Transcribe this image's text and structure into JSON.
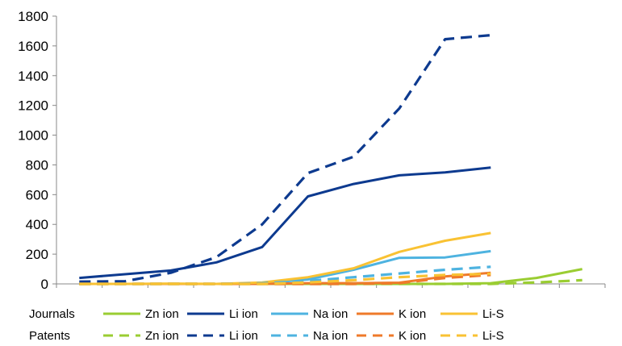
{
  "chart_data": {
    "type": "line",
    "title": "",
    "xlabel": "",
    "ylabel": "",
    "ylim": [
      0,
      1800
    ],
    "yticks": [
      0,
      200,
      400,
      600,
      800,
      1000,
      1200,
      1400,
      1600,
      1800
    ],
    "x": [
      1,
      2,
      3,
      4,
      5,
      6,
      7,
      8,
      9,
      10,
      11,
      12
    ],
    "grid": false,
    "legend": {
      "placement": "bottom",
      "group_labels": [
        "Journals",
        "Patents"
      ]
    },
    "series": [
      {
        "name": "Zn ion",
        "group": "Journals",
        "color": "#9ACD32",
        "style": "solid",
        "values": [
          0,
          0,
          0,
          0,
          0,
          0,
          0,
          0,
          0,
          5,
          40,
          100
        ]
      },
      {
        "name": "Li ion",
        "group": "Journals",
        "color": "#0D3A8F",
        "style": "solid",
        "values": [
          40,
          65,
          90,
          145,
          248,
          588,
          672,
          730,
          750,
          782,
          null,
          null
        ]
      },
      {
        "name": "Na ion",
        "group": "Journals",
        "color": "#4EB3E0",
        "style": "solid",
        "values": [
          0,
          0,
          0,
          0,
          5,
          30,
          95,
          175,
          178,
          220,
          null,
          null
        ]
      },
      {
        "name": "K ion",
        "group": "Journals",
        "color": "#EF7A2A",
        "style": "solid",
        "values": [
          0,
          0,
          0,
          0,
          0,
          5,
          5,
          8,
          50,
          75,
          null,
          null
        ]
      },
      {
        "name": "Li-S",
        "group": "Journals",
        "color": "#F9C233",
        "style": "solid",
        "values": [
          0,
          0,
          2,
          0,
          10,
          45,
          105,
          215,
          290,
          342,
          null,
          null
        ]
      },
      {
        "name": "Zn ion",
        "group": "Patents",
        "color": "#9ACD32",
        "style": "dashed",
        "values": [
          0,
          0,
          0,
          0,
          0,
          0,
          0,
          0,
          0,
          0,
          10,
          25
        ]
      },
      {
        "name": "Li ion",
        "group": "Patents",
        "color": "#0D3A8F",
        "style": "dashed",
        "values": [
          15,
          18,
          75,
          180,
          400,
          745,
          855,
          1180,
          1645,
          1672,
          null,
          null
        ]
      },
      {
        "name": "Na ion",
        "group": "Patents",
        "color": "#4EB3E0",
        "style": "dashed",
        "values": [
          0,
          0,
          0,
          0,
          5,
          20,
          45,
          70,
          95,
          115,
          null,
          null
        ]
      },
      {
        "name": "K ion",
        "group": "Patents",
        "color": "#EF7A2A",
        "style": "dashed",
        "values": [
          0,
          0,
          0,
          0,
          0,
          0,
          0,
          5,
          40,
          60,
          null,
          null
        ]
      },
      {
        "name": "Li-S",
        "group": "Patents",
        "color": "#F9C233",
        "style": "dashed",
        "values": [
          0,
          0,
          0,
          0,
          0,
          10,
          25,
          45,
          60,
          68,
          null,
          null
        ]
      }
    ]
  }
}
